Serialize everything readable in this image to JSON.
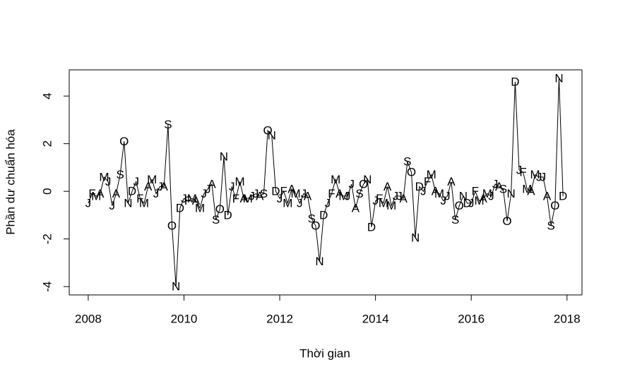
{
  "chart_data": {
    "type": "line",
    "x_label": "Thời gian",
    "y_label": "Phần dư chuẩn hóa",
    "x": [
      2008,
      2008.083,
      2008.167,
      2008.25,
      2008.333,
      2008.417,
      2008.5,
      2008.583,
      2008.667,
      2008.75,
      2008.833,
      2008.917,
      2009,
      2009.083,
      2009.167,
      2009.25,
      2009.333,
      2009.417,
      2009.5,
      2009.583,
      2009.667,
      2009.75,
      2009.833,
      2009.917,
      2010,
      2010.083,
      2010.167,
      2010.25,
      2010.333,
      2010.417,
      2010.5,
      2010.583,
      2010.667,
      2010.75,
      2010.833,
      2010.917,
      2011,
      2011.083,
      2011.167,
      2011.25,
      2011.333,
      2011.417,
      2011.5,
      2011.583,
      2011.667,
      2011.75,
      2011.833,
      2011.917,
      2012,
      2012.083,
      2012.167,
      2012.25,
      2012.333,
      2012.417,
      2012.5,
      2012.583,
      2012.667,
      2012.75,
      2012.833,
      2012.917,
      2013,
      2013.083,
      2013.167,
      2013.25,
      2013.333,
      2013.417,
      2013.5,
      2013.583,
      2013.667,
      2013.75,
      2013.833,
      2013.917,
      2014,
      2014.083,
      2014.167,
      2014.25,
      2014.333,
      2014.417,
      2014.5,
      2014.583,
      2014.667,
      2014.75,
      2014.833,
      2014.917,
      2015,
      2015.083,
      2015.167,
      2015.25,
      2015.333,
      2015.417,
      2015.5,
      2015.583,
      2015.667,
      2015.75,
      2015.833,
      2015.917,
      2016,
      2016.083,
      2016.167,
      2016.25,
      2016.333,
      2016.417,
      2016.5,
      2016.583,
      2016.667,
      2016.75,
      2016.833,
      2016.917,
      2017,
      2017.083,
      2017.167,
      2017.25,
      2017.333,
      2017.417,
      2017.5,
      2017.583,
      2017.667,
      2017.75,
      2017.833,
      2017.917
    ],
    "values": [
      -0.5,
      -0.1,
      -0.2,
      -0.1,
      0.6,
      0.4,
      -0.6,
      -0.1,
      0.7,
      2.1,
      -0.5,
      0.0,
      0.4,
      -0.3,
      -0.5,
      0.2,
      0.5,
      -0.1,
      0.2,
      0.2,
      2.8,
      -1.45,
      -4.0,
      -0.7,
      -0.3,
      -0.4,
      -0.3,
      -0.4,
      -0.7,
      -0.1,
      0.1,
      0.3,
      -1.2,
      -0.75,
      1.45,
      -1.0,
      0.2,
      -0.3,
      0.4,
      -0.3,
      -0.3,
      -0.2,
      -0.1,
      -0.2,
      -0.1,
      2.55,
      2.35,
      0.0,
      -0.3,
      0.0,
      -0.5,
      0.1,
      -0.1,
      -0.5,
      -0.1,
      -0.2,
      -1.15,
      -1.45,
      -2.95,
      -1.0,
      -0.5,
      -0.1,
      0.5,
      -0.1,
      -0.2,
      -0.2,
      0.3,
      -0.7,
      -0.1,
      0.3,
      0.5,
      -1.5,
      -0.4,
      -0.3,
      -0.5,
      0.2,
      -0.6,
      -0.2,
      -0.2,
      -0.3,
      1.25,
      0.8,
      -1.95,
      0.2,
      0.0,
      0.4,
      0.7,
      0.0,
      -0.1,
      -0.4,
      -0.2,
      0.4,
      -1.2,
      -0.6,
      -0.2,
      -0.5,
      -0.5,
      0.0,
      -0.4,
      -0.3,
      -0.1,
      -0.2,
      0.3,
      0.2,
      0.1,
      -1.25,
      -0.1,
      4.6,
      0.9,
      0.8,
      0.1,
      0.0,
      0.7,
      0.6,
      0.6,
      -0.2,
      -1.45,
      -0.6,
      4.75,
      -0.2
    ],
    "point_labels": [
      "J",
      "F",
      "M",
      "A",
      "M",
      "J",
      "J",
      "A",
      "S",
      "O",
      "N",
      "D",
      "J",
      "F",
      "M",
      "A",
      "M",
      "J",
      "J",
      "A",
      "S",
      "O",
      "N",
      "D",
      "J",
      "F",
      "M",
      "A",
      "M",
      "J",
      "J",
      "A",
      "S",
      "O",
      "N",
      "D",
      "J",
      "F",
      "M",
      "A",
      "M",
      "J",
      "J",
      "A",
      "S",
      "O",
      "N",
      "D",
      "J",
      "F",
      "M",
      "A",
      "M",
      "J",
      "J",
      "A",
      "S",
      "O",
      "N",
      "D",
      "J",
      "F",
      "M",
      "A",
      "M",
      "J",
      "J",
      "A",
      "S",
      "O",
      "N",
      "D",
      "J",
      "F",
      "M",
      "A",
      "M",
      "J",
      "J",
      "A",
      "S",
      "O",
      "N",
      "D",
      "J",
      "F",
      "M",
      "A",
      "M",
      "J",
      "J",
      "A",
      "S",
      "O",
      "N",
      "D",
      "J",
      "F",
      "M",
      "A",
      "M",
      "J",
      "J",
      "A",
      "S",
      "O",
      "N",
      "D",
      "J",
      "F",
      "M",
      "A",
      "M",
      "J",
      "J",
      "A",
      "S",
      "O",
      "N",
      "D"
    ],
    "color": "#000000",
    "xlim": [
      2007.603,
      2018.313
    ],
    "xticks": [
      2008,
      2010,
      2012,
      2014,
      2016,
      2018
    ],
    "ylim": [
      -4.35,
      5.1
    ],
    "yticks": [
      -4,
      -2,
      0,
      2,
      4
    ]
  }
}
